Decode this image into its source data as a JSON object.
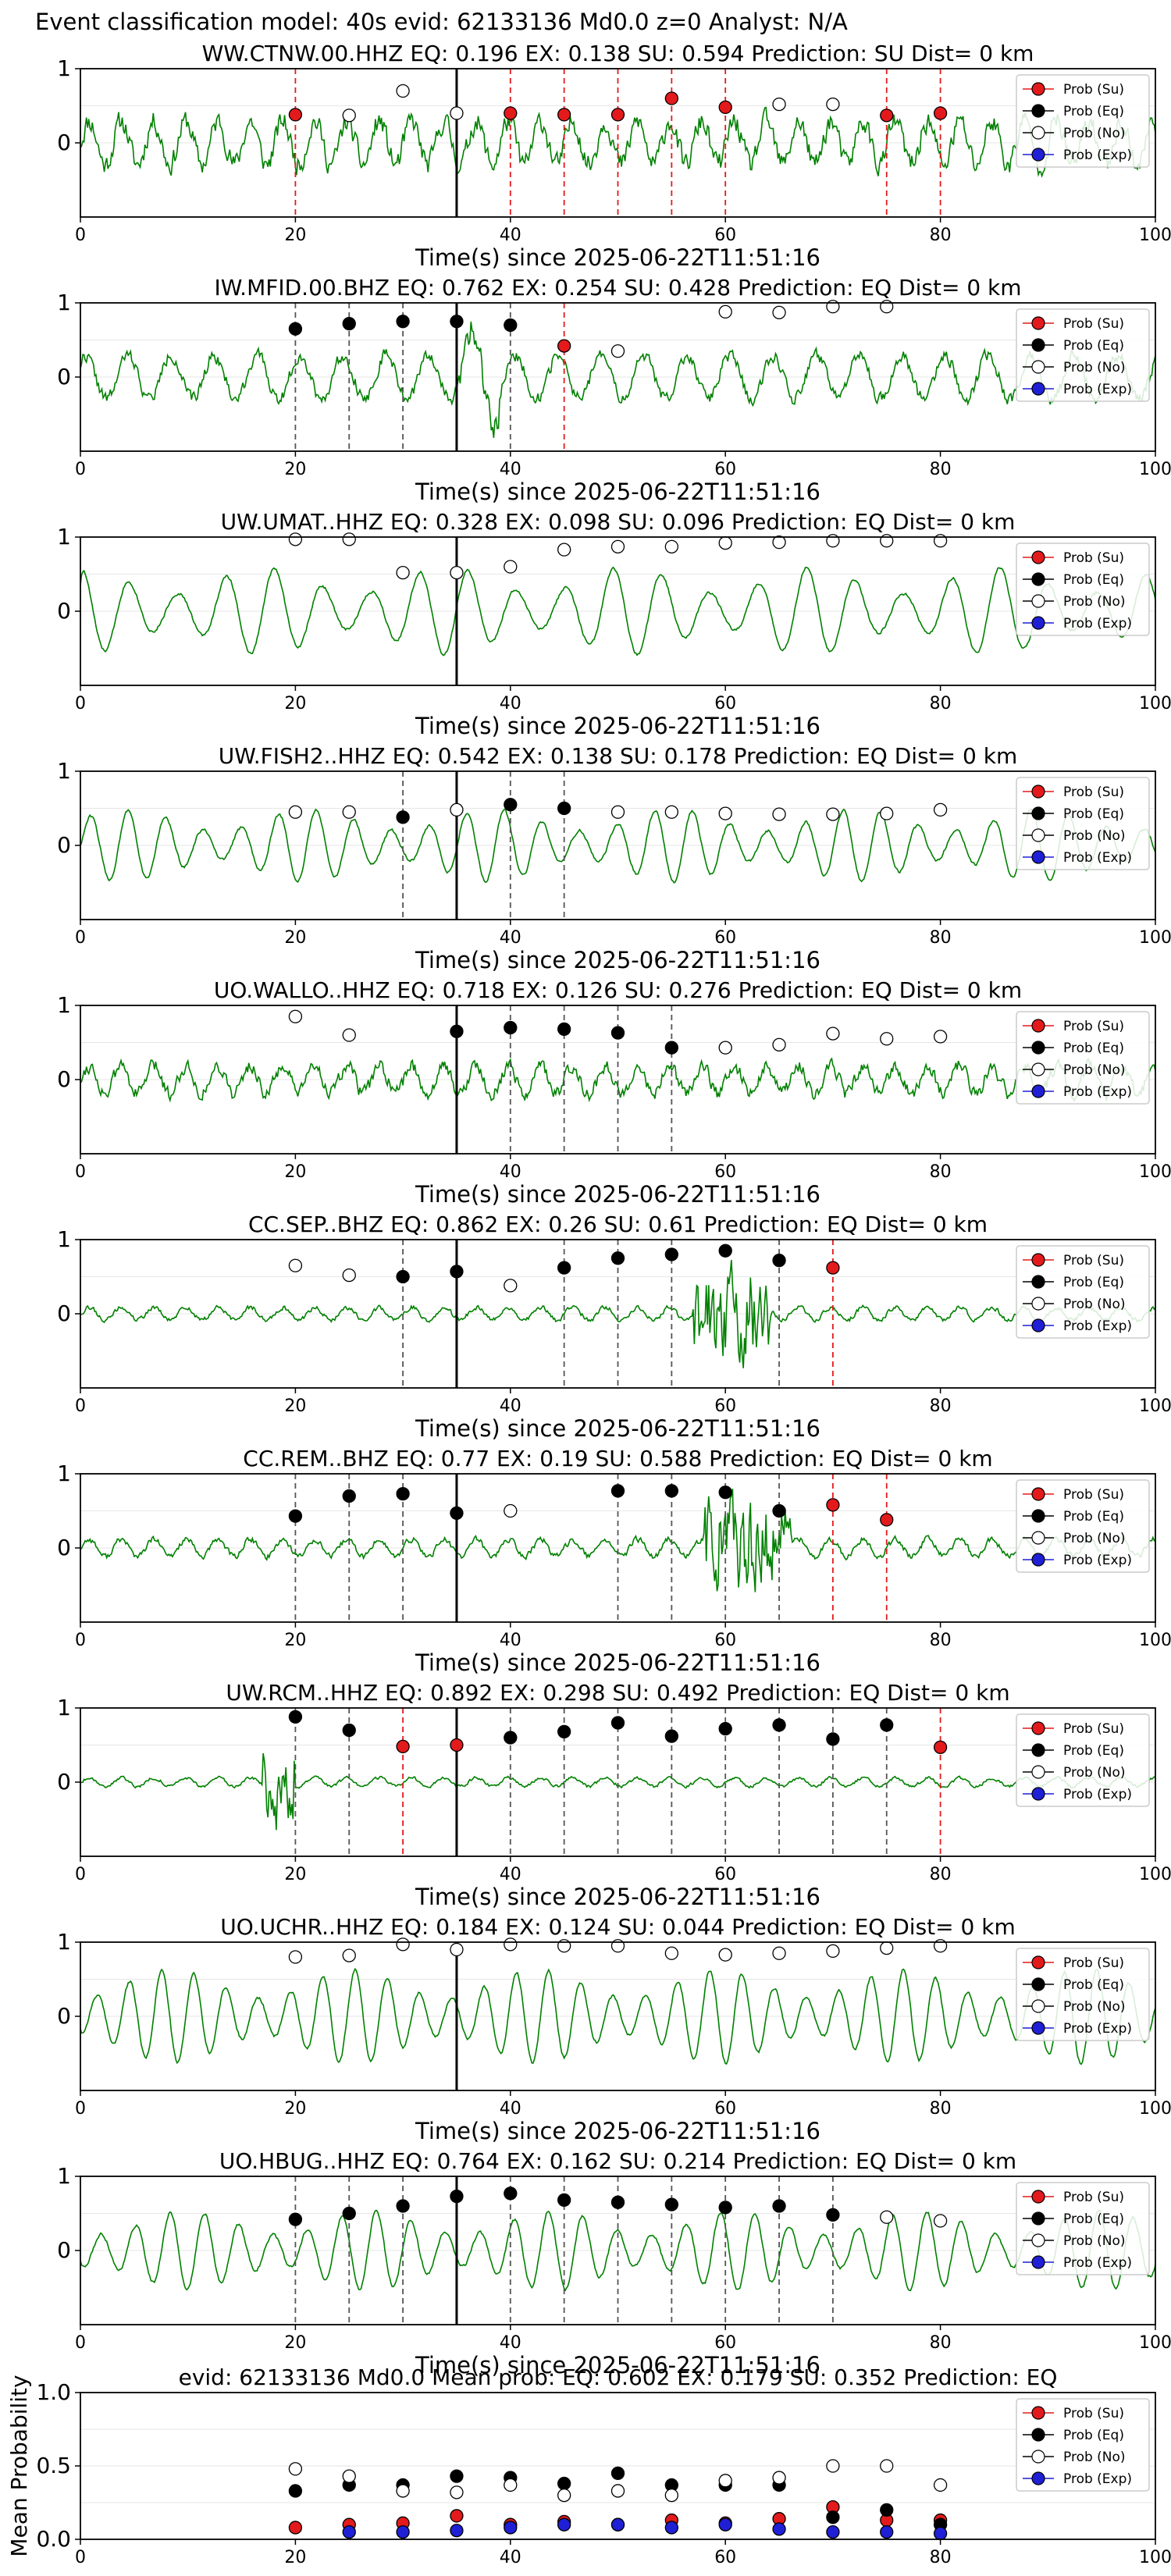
{
  "figure_title": "Event classification model: 40s evid: 62133136 Md0.0 z=0 Analyst: N/A",
  "colors": {
    "trace": "#008000",
    "su": "#e31a1c",
    "eq": "#000000",
    "no": "#ffffff",
    "exp": "#1f1fd6",
    "vline_eq": "#555555",
    "vline_su": "#e31a1c",
    "origin": "#000000"
  },
  "legend": [
    "Prob (Su)",
    "Prob (Eq)",
    "Prob (No)",
    "Prob (Exp)"
  ],
  "chart_data": [
    {
      "type": "line",
      "title": "WW.CTNW.00.HHZ   EQ: 0.196   EX: 0.138   SU: 0.594   Prediction: SU    Dist= 0 km",
      "xlabel": "Time(s) since 2025-06-22T11:51:16",
      "xlim": [
        0,
        100
      ],
      "ylim": [
        -1,
        1
      ],
      "x_ticks": [
        0,
        20,
        40,
        60,
        80,
        100
      ],
      "y_ticks": [
        0,
        1
      ],
      "origin_time": 35,
      "style": "noisy",
      "amplitude": 0.55,
      "period": 3,
      "seed": 11,
      "points": [
        [
          20,
          "su",
          0.38
        ],
        [
          25,
          "no",
          0.37
        ],
        [
          30,
          "no",
          0.7
        ],
        [
          35,
          "no",
          0.4
        ],
        [
          40,
          "su",
          0.4
        ],
        [
          45,
          "su",
          0.38
        ],
        [
          50,
          "su",
          0.38
        ],
        [
          55,
          "su",
          0.6
        ],
        [
          60,
          "su",
          0.48
        ],
        [
          65,
          "no",
          0.52
        ],
        [
          70,
          "no",
          0.52
        ],
        [
          75,
          "su",
          0.37
        ],
        [
          80,
          "su",
          0.4
        ]
      ],
      "vlines": [
        [
          20,
          "su"
        ],
        [
          35,
          "origin"
        ],
        [
          40,
          "su"
        ],
        [
          45,
          "su"
        ],
        [
          50,
          "su"
        ],
        [
          55,
          "su"
        ],
        [
          60,
          "su"
        ],
        [
          75,
          "su"
        ],
        [
          80,
          "su"
        ]
      ]
    },
    {
      "type": "line",
      "title": "IW.MFID.00.BHZ   EQ: 0.762   EX: 0.254   SU: 0.428   Prediction: EQ    Dist= 0 km",
      "xlabel": "Time(s) since 2025-06-22T11:51:16",
      "xlim": [
        0,
        100
      ],
      "ylim": [
        -1,
        1
      ],
      "x_ticks": [
        0,
        20,
        40,
        60,
        80,
        100
      ],
      "y_ticks": [
        0,
        1
      ],
      "origin_time": 35,
      "style": "mixed",
      "amplitude": 0.5,
      "period": 4,
      "seed": 22,
      "points": [
        [
          20,
          "eq",
          0.65
        ],
        [
          25,
          "eq",
          0.72
        ],
        [
          30,
          "eq",
          0.75
        ],
        [
          35,
          "eq",
          0.75
        ],
        [
          40,
          "eq",
          0.7
        ],
        [
          45,
          "su",
          0.42
        ],
        [
          50,
          "no",
          0.35
        ],
        [
          60,
          "no",
          0.88
        ],
        [
          65,
          "no",
          0.87
        ],
        [
          70,
          "no",
          0.95
        ],
        [
          75,
          "no",
          0.95
        ]
      ],
      "vlines": [
        [
          20,
          "eq"
        ],
        [
          25,
          "eq"
        ],
        [
          30,
          "eq"
        ],
        [
          35,
          "origin"
        ],
        [
          40,
          "eq"
        ],
        [
          45,
          "su"
        ]
      ]
    },
    {
      "type": "line",
      "title": "UW.UMAT..HHZ   EQ: 0.328   EX: 0.098   SU: 0.096   Prediction: EQ    Dist= 0 km",
      "xlabel": "Time(s) since 2025-06-22T11:51:16",
      "xlim": [
        0,
        100
      ],
      "ylim": [
        -1,
        1
      ],
      "x_ticks": [
        0,
        20,
        40,
        60,
        80,
        100
      ],
      "y_ticks": [
        0,
        1
      ],
      "origin_time": 35,
      "style": "wave",
      "amplitude": 0.6,
      "period": 4.5,
      "seed": 33,
      "points": [
        [
          20,
          "no",
          0.97
        ],
        [
          25,
          "no",
          0.97
        ],
        [
          30,
          "no",
          0.52
        ],
        [
          35,
          "no",
          0.52
        ],
        [
          40,
          "no",
          0.6
        ],
        [
          45,
          "no",
          0.83
        ],
        [
          50,
          "no",
          0.87
        ],
        [
          55,
          "no",
          0.87
        ],
        [
          60,
          "no",
          0.92
        ],
        [
          65,
          "no",
          0.93
        ],
        [
          70,
          "no",
          0.95
        ],
        [
          75,
          "no",
          0.95
        ],
        [
          80,
          "no",
          0.95
        ]
      ],
      "vlines": [
        [
          35,
          "origin"
        ]
      ]
    },
    {
      "type": "line",
      "title": "UW.FISH2..HHZ   EQ: 0.542   EX: 0.138   SU: 0.178   Prediction: EQ    Dist= 0 km",
      "xlabel": "Time(s) since 2025-06-22T11:51:16",
      "xlim": [
        0,
        100
      ],
      "ylim": [
        -1,
        1
      ],
      "x_ticks": [
        0,
        20,
        40,
        60,
        80,
        100
      ],
      "y_ticks": [
        0,
        1
      ],
      "origin_time": 35,
      "style": "wave",
      "amplitude": 0.5,
      "period": 3.5,
      "seed": 44,
      "points": [
        [
          20,
          "no",
          0.45
        ],
        [
          25,
          "no",
          0.45
        ],
        [
          30,
          "eq",
          0.38
        ],
        [
          35,
          "no",
          0.48
        ],
        [
          40,
          "eq",
          0.55
        ],
        [
          45,
          "eq",
          0.5
        ],
        [
          50,
          "no",
          0.45
        ],
        [
          55,
          "no",
          0.45
        ],
        [
          60,
          "no",
          0.43
        ],
        [
          65,
          "no",
          0.42
        ],
        [
          70,
          "no",
          0.42
        ],
        [
          75,
          "no",
          0.43
        ],
        [
          80,
          "no",
          0.48
        ]
      ],
      "vlines": [
        [
          30,
          "eq"
        ],
        [
          35,
          "origin"
        ],
        [
          40,
          "eq"
        ],
        [
          45,
          "eq"
        ]
      ]
    },
    {
      "type": "line",
      "title": "UO.WALLO..HHZ   EQ: 0.718   EX: 0.126   SU: 0.276   Prediction: EQ    Dist= 0 km",
      "xlabel": "Time(s) since 2025-06-22T11:51:16",
      "xlim": [
        0,
        100
      ],
      "ylim": [
        -1,
        1
      ],
      "x_ticks": [
        0,
        20,
        40,
        60,
        80,
        100
      ],
      "y_ticks": [
        0,
        1
      ],
      "origin_time": 35,
      "style": "noisy",
      "amplitude": 0.35,
      "period": 3,
      "seed": 55,
      "points": [
        [
          20,
          "no",
          0.85
        ],
        [
          25,
          "no",
          0.6
        ],
        [
          35,
          "eq",
          0.65
        ],
        [
          40,
          "eq",
          0.7
        ],
        [
          45,
          "eq",
          0.68
        ],
        [
          50,
          "eq",
          0.63
        ],
        [
          55,
          "eq",
          0.43
        ],
        [
          60,
          "no",
          0.43
        ],
        [
          65,
          "no",
          0.47
        ],
        [
          70,
          "no",
          0.62
        ],
        [
          75,
          "no",
          0.55
        ],
        [
          80,
          "no",
          0.58
        ]
      ],
      "vlines": [
        [
          35,
          "origin"
        ],
        [
          40,
          "eq"
        ],
        [
          45,
          "eq"
        ],
        [
          50,
          "eq"
        ],
        [
          55,
          "eq"
        ]
      ]
    },
    {
      "type": "line",
      "title": "CC.SEP..BHZ   EQ: 0.862   EX: 0.26   SU: 0.61   Prediction: EQ    Dist= 0 km",
      "xlabel": "Time(s) since 2025-06-22T11:51:16",
      "xlim": [
        0,
        100
      ],
      "ylim": [
        -1,
        1
      ],
      "x_ticks": [
        0,
        20,
        40,
        60,
        80,
        100
      ],
      "y_ticks": [
        0,
        1
      ],
      "origin_time": 35,
      "style": "quiet",
      "amplitude": 0.15,
      "period": 3,
      "seed": 66,
      "burst": [
        57,
        64
      ],
      "points": [
        [
          20,
          "no",
          0.65
        ],
        [
          25,
          "no",
          0.52
        ],
        [
          30,
          "eq",
          0.5
        ],
        [
          35,
          "eq",
          0.57
        ],
        [
          40,
          "no",
          0.38
        ],
        [
          45,
          "eq",
          0.62
        ],
        [
          50,
          "eq",
          0.75
        ],
        [
          55,
          "eq",
          0.8
        ],
        [
          60,
          "eq",
          0.85
        ],
        [
          65,
          "eq",
          0.72
        ],
        [
          70,
          "su",
          0.62
        ]
      ],
      "vlines": [
        [
          30,
          "eq"
        ],
        [
          35,
          "origin"
        ],
        [
          45,
          "eq"
        ],
        [
          50,
          "eq"
        ],
        [
          55,
          "eq"
        ],
        [
          65,
          "eq"
        ],
        [
          70,
          "su"
        ]
      ]
    },
    {
      "type": "line",
      "title": "CC.REM..BHZ   EQ: 0.77   EX: 0.19   SU: 0.588   Prediction: EQ    Dist= 0 km",
      "xlabel": "Time(s) since 2025-06-22T11:51:16",
      "xlim": [
        0,
        100
      ],
      "ylim": [
        -1,
        1
      ],
      "x_ticks": [
        0,
        20,
        40,
        60,
        80,
        100
      ],
      "y_ticks": [
        0,
        1
      ],
      "origin_time": 35,
      "style": "quiet",
      "amplitude": 0.2,
      "period": 3,
      "seed": 77,
      "burst": [
        58,
        66
      ],
      "points": [
        [
          20,
          "eq",
          0.43
        ],
        [
          25,
          "eq",
          0.7
        ],
        [
          30,
          "eq",
          0.73
        ],
        [
          35,
          "eq",
          0.47
        ],
        [
          40,
          "no",
          0.5
        ],
        [
          50,
          "eq",
          0.77
        ],
        [
          55,
          "eq",
          0.77
        ],
        [
          60,
          "eq",
          0.75
        ],
        [
          65,
          "eq",
          0.5
        ],
        [
          70,
          "su",
          0.58
        ],
        [
          75,
          "su",
          0.38
        ]
      ],
      "vlines": [
        [
          20,
          "eq"
        ],
        [
          25,
          "eq"
        ],
        [
          30,
          "eq"
        ],
        [
          35,
          "origin"
        ],
        [
          50,
          "eq"
        ],
        [
          55,
          "eq"
        ],
        [
          60,
          "eq"
        ],
        [
          65,
          "eq"
        ],
        [
          70,
          "su"
        ],
        [
          75,
          "su"
        ]
      ]
    },
    {
      "type": "line",
      "title": "UW.RCM..HHZ   EQ: 0.892   EX: 0.298   SU: 0.492   Prediction: EQ    Dist= 0 km",
      "xlabel": "Time(s) since 2025-06-22T11:51:16",
      "xlim": [
        0,
        100
      ],
      "ylim": [
        -1,
        1
      ],
      "x_ticks": [
        0,
        20,
        40,
        60,
        80,
        100
      ],
      "y_ticks": [
        0,
        1
      ],
      "origin_time": 35,
      "style": "quiet",
      "amplitude": 0.1,
      "period": 3,
      "seed": 88,
      "burst": [
        17,
        20
      ],
      "points": [
        [
          20,
          "eq",
          0.88
        ],
        [
          25,
          "eq",
          0.7
        ],
        [
          30,
          "su",
          0.48
        ],
        [
          35,
          "su",
          0.5
        ],
        [
          40,
          "eq",
          0.6
        ],
        [
          45,
          "eq",
          0.68
        ],
        [
          50,
          "eq",
          0.8
        ],
        [
          55,
          "eq",
          0.62
        ],
        [
          60,
          "eq",
          0.72
        ],
        [
          65,
          "eq",
          0.77
        ],
        [
          70,
          "eq",
          0.58
        ],
        [
          75,
          "eq",
          0.77
        ],
        [
          80,
          "su",
          0.47
        ]
      ],
      "vlines": [
        [
          20,
          "eq"
        ],
        [
          25,
          "eq"
        ],
        [
          30,
          "su"
        ],
        [
          35,
          "origin"
        ],
        [
          40,
          "eq"
        ],
        [
          45,
          "eq"
        ],
        [
          50,
          "eq"
        ],
        [
          55,
          "eq"
        ],
        [
          60,
          "eq"
        ],
        [
          65,
          "eq"
        ],
        [
          70,
          "eq"
        ],
        [
          75,
          "eq"
        ],
        [
          80,
          "su"
        ]
      ]
    },
    {
      "type": "line",
      "title": "UO.UCHR..HHZ   EQ: 0.184   EX: 0.124   SU: 0.044   Prediction: EQ    Dist= 0 km",
      "xlabel": "Time(s) since 2025-06-22T11:51:16",
      "xlim": [
        0,
        100
      ],
      "ylim": [
        -1,
        1
      ],
      "x_ticks": [
        0,
        20,
        40,
        60,
        80,
        100
      ],
      "y_ticks": [
        0,
        1
      ],
      "origin_time": 35,
      "style": "wave",
      "amplitude": 0.65,
      "period": 3,
      "seed": 99,
      "points": [
        [
          20,
          "no",
          0.8
        ],
        [
          25,
          "no",
          0.82
        ],
        [
          30,
          "no",
          0.97
        ],
        [
          35,
          "no",
          0.9
        ],
        [
          40,
          "no",
          0.97
        ],
        [
          45,
          "no",
          0.95
        ],
        [
          50,
          "no",
          0.95
        ],
        [
          55,
          "no",
          0.85
        ],
        [
          60,
          "no",
          0.83
        ],
        [
          65,
          "no",
          0.85
        ],
        [
          70,
          "no",
          0.88
        ],
        [
          75,
          "no",
          0.92
        ],
        [
          80,
          "no",
          0.95
        ]
      ],
      "vlines": [
        [
          35,
          "origin"
        ]
      ]
    },
    {
      "type": "line",
      "title": "UO.HBUG..HHZ   EQ: 0.764   EX: 0.162   SU: 0.214   Prediction: EQ    Dist= 0 km",
      "xlabel": "Time(s) since 2025-06-22T11:51:16",
      "xlim": [
        0,
        100
      ],
      "ylim": [
        -1,
        1
      ],
      "x_ticks": [
        0,
        20,
        40,
        60,
        80,
        100
      ],
      "y_ticks": [
        0,
        1
      ],
      "origin_time": 35,
      "style": "wave",
      "amplitude": 0.55,
      "period": 3.2,
      "seed": 111,
      "points": [
        [
          20,
          "eq",
          0.42
        ],
        [
          25,
          "eq",
          0.5
        ],
        [
          30,
          "eq",
          0.6
        ],
        [
          35,
          "eq",
          0.73
        ],
        [
          40,
          "eq",
          0.77
        ],
        [
          45,
          "eq",
          0.68
        ],
        [
          50,
          "eq",
          0.65
        ],
        [
          55,
          "eq",
          0.62
        ],
        [
          60,
          "eq",
          0.58
        ],
        [
          65,
          "eq",
          0.6
        ],
        [
          70,
          "eq",
          0.48
        ],
        [
          75,
          "no",
          0.45
        ],
        [
          80,
          "no",
          0.4
        ]
      ],
      "vlines": [
        [
          20,
          "eq"
        ],
        [
          25,
          "eq"
        ],
        [
          30,
          "eq"
        ],
        [
          35,
          "origin"
        ],
        [
          40,
          "eq"
        ],
        [
          45,
          "eq"
        ],
        [
          50,
          "eq"
        ],
        [
          55,
          "eq"
        ],
        [
          60,
          "eq"
        ],
        [
          65,
          "eq"
        ],
        [
          70,
          "eq"
        ]
      ]
    },
    {
      "type": "scatter",
      "title": "evid: 62133136  Md0.0   Mean prob:   EQ: 0.602  EX: 0.179  SU: 0.352   Prediction: EQ",
      "ylabel": "Mean Probability",
      "xlim": [
        0,
        100
      ],
      "ylim": [
        0,
        1
      ],
      "x_ticks": [
        0,
        20,
        40,
        60,
        80,
        100
      ],
      "y_ticks": [
        0.0,
        0.5,
        1.0
      ],
      "y_tick_labels": [
        "0.0",
        "0.5",
        "1.0"
      ],
      "x": [
        20,
        25,
        30,
        35,
        40,
        45,
        50,
        55,
        60,
        65,
        70,
        75,
        80
      ],
      "series": [
        {
          "name": "Prob (Su)",
          "values": [
            0.08,
            0.1,
            0.11,
            0.16,
            0.1,
            0.12,
            0.1,
            0.13,
            0.11,
            0.14,
            0.22,
            0.13,
            0.13
          ]
        },
        {
          "name": "Prob (Eq)",
          "values": [
            0.33,
            0.37,
            0.37,
            0.43,
            0.42,
            0.38,
            0.45,
            0.37,
            0.37,
            0.37,
            0.15,
            0.2,
            0.1
          ]
        },
        {
          "name": "Prob (No)",
          "values": [
            0.48,
            0.43,
            0.33,
            0.32,
            0.37,
            0.3,
            0.33,
            0.3,
            0.4,
            0.42,
            0.5,
            0.5,
            0.37
          ]
        },
        {
          "name": "Prob (Exp)",
          "values": [
            null,
            0.05,
            0.05,
            0.06,
            0.08,
            0.1,
            0.1,
            0.08,
            0.1,
            0.07,
            0.05,
            0.05,
            0.04
          ]
        }
      ]
    }
  ]
}
